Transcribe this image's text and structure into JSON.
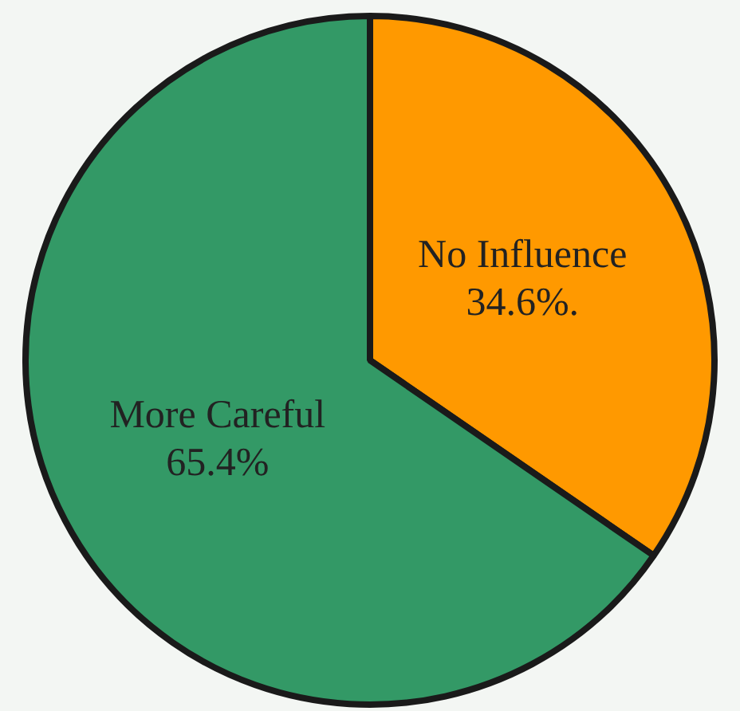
{
  "chart_data": {
    "type": "pie",
    "categories": [
      "No Influence",
      "More Careful"
    ],
    "values": [
      34.6,
      65.4
    ],
    "colors": [
      "#ff9900",
      "#339966"
    ],
    "value_labels": [
      "34.6%.",
      "65.4%"
    ],
    "legend": false
  }
}
